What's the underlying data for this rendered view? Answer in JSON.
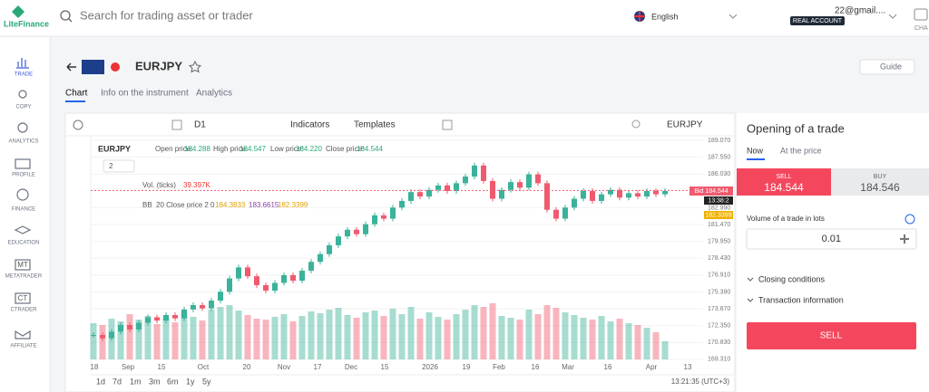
{
  "header": {
    "logo": "LiteFinance",
    "search_placeholder": "Search for trading asset or trader",
    "language": "English",
    "email": "22@gmail....",
    "account_type": "REAL ACCOUNT",
    "chat": "CHA"
  },
  "sidebar": {
    "items": [
      "TRADE",
      "COPY",
      "ANALYTICS",
      "PROFILE",
      "FINANCE",
      "EDUCATION",
      "METATRADER",
      "CTRADER",
      "AFFILIATE"
    ],
    "icon_labels": [
      "MT",
      "CT"
    ]
  },
  "instrument": {
    "symbol": "EURJPY",
    "tabs": [
      "Chart",
      "Info on the instrument",
      "Analytics"
    ],
    "guide": "Guide"
  },
  "toolbar": {
    "interval": "D1",
    "indicators": "Indicators",
    "templates": "Templates",
    "symbol": "EURJPY"
  },
  "legend": {
    "symbol": "EURJPY",
    "open_label": "Open price:",
    "open": "184.288",
    "high_label": "High price:",
    "high": "184.547",
    "low_label": "Low price:",
    "low": "184.220",
    "close_label": "Close price:",
    "close": "184.544",
    "multiplier": "2",
    "volume_label": "Vol. (ticks)",
    "volume": "39.397K",
    "bb_label": "BB",
    "bb_params": "20 Close price 2 0",
    "bb_values": [
      "184.3833",
      "183.6615",
      "182.3399"
    ]
  },
  "price_tags": {
    "bid": "Bid 184.544",
    "time": "13:38:2",
    "bb_lower": "182.3399"
  },
  "chart_data": {
    "type": "candlestick",
    "closes": [
      171.5,
      171.2,
      171.8,
      172.4,
      172.0,
      172.6,
      173.1,
      172.8,
      173.3,
      173.0,
      173.8,
      174.2,
      173.9,
      174.6,
      175.4,
      176.6,
      177.6,
      176.8,
      176.0,
      175.5,
      176.2,
      176.9,
      176.4,
      177.3,
      178.1,
      178.8,
      179.6,
      180.4,
      181.0,
      180.6,
      181.5,
      182.3,
      182.0,
      183.0,
      183.6,
      184.4,
      184.0,
      184.6,
      185.0,
      184.5,
      185.2,
      185.8,
      186.8,
      185.4,
      183.8,
      184.6,
      185.3,
      184.8,
      186.0,
      185.2,
      182.8,
      182.0,
      183.0,
      183.8,
      184.5,
      183.6,
      184.2,
      184.6,
      183.9,
      184.3,
      184.0,
      184.5,
      184.2,
      184.5
    ],
    "volumes": [
      40,
      38,
      45,
      42,
      50,
      44,
      48,
      39,
      46,
      41,
      52,
      47,
      43,
      55,
      58,
      60,
      54,
      49,
      45,
      44,
      47,
      50,
      42,
      48,
      53,
      51,
      55,
      57,
      49,
      46,
      52,
      54,
      48,
      56,
      50,
      58,
      45,
      52,
      47,
      44,
      50,
      55,
      60,
      58,
      62,
      48,
      46,
      44,
      55,
      50,
      60,
      57,
      52,
      49,
      46,
      44,
      48,
      42,
      45,
      40,
      38,
      35,
      30,
      20
    ],
    "ylim": [
      169.05,
      189.48
    ],
    "yticks": [
      {
        "value": 189.07,
        "label": "189.070"
      },
      {
        "value": 187.55,
        "label": "187.550"
      },
      {
        "value": 186.03,
        "label": "186.030"
      },
      {
        "value": 182.99,
        "label": "182.990"
      },
      {
        "value": 181.47,
        "label": "181.470"
      },
      {
        "value": 179.95,
        "label": "179.950"
      },
      {
        "value": 178.43,
        "label": "178.430"
      },
      {
        "value": 176.91,
        "label": "176.910"
      },
      {
        "value": 175.39,
        "label": "175.390"
      },
      {
        "value": 173.87,
        "label": "173.870"
      },
      {
        "value": 172.35,
        "label": "172.350"
      },
      {
        "value": 170.83,
        "label": "170.830"
      },
      {
        "value": 169.31,
        "label": "169.310"
      }
    ],
    "volume_ylim": [
      0,
      100
    ],
    "x_labels": [
      "18",
      "Sep",
      "15",
      "Oct",
      "20",
      "Nov",
      "17",
      "Dec",
      "15",
      "2026",
      "19",
      "Feb",
      "16",
      "Mar",
      "16",
      "Apr",
      "13"
    ],
    "up_color": "#3bb29a",
    "down_color": "#ef5a6f",
    "bid": 184.544
  },
  "footer": {
    "ranges": [
      "1d",
      "7d",
      "1m",
      "3m",
      "6m",
      "1y",
      "5y"
    ],
    "time": "13:21:35 (UTC+3)"
  },
  "trade_panel": {
    "title": "Opening of a trade",
    "tabs": [
      "Now",
      "At the price"
    ],
    "sell_label": "SELL",
    "sell_price": "184.544",
    "buy_label": "BUY",
    "buy_price": "184.546",
    "volume_label": "Volume of a trade in lots",
    "volume": "0.01",
    "closing_conditions": "Closing conditions",
    "transaction_info": "Transaction information",
    "button": "SELL"
  }
}
